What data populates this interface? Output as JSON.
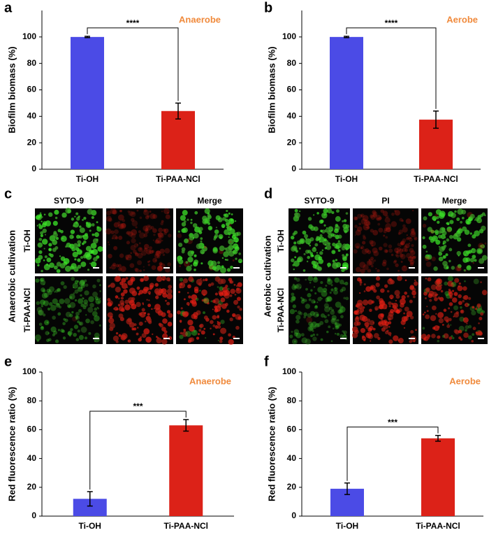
{
  "panel_letters": [
    "a",
    "b",
    "c",
    "d",
    "e",
    "f"
  ],
  "chart_data": [
    {
      "type": "bar",
      "y_label": "Biofilm biomass (%)",
      "significance": "****",
      "condition": "Anaerobe",
      "categories": [
        "Ti-OH",
        "Ti-PAA-NCl"
      ],
      "values": [
        100,
        44
      ],
      "errors": [
        0.5,
        6
      ],
      "colors": [
        "#4b4be6",
        "#dc2218"
      ],
      "ylim": [
        0,
        120
      ],
      "yticks": [
        0,
        20,
        40,
        60,
        80,
        100
      ]
    },
    {
      "type": "bar",
      "y_label": "Biofilm biomass (%)",
      "significance": "****",
      "condition": "Aerobe",
      "categories": [
        "Ti-OH",
        "Ti-PAA-NCl"
      ],
      "values": [
        100,
        37.5
      ],
      "errors": [
        0.5,
        6.5
      ],
      "colors": [
        "#4b4be6",
        "#dc2218"
      ],
      "ylim": [
        0,
        120
      ],
      "yticks": [
        0,
        20,
        40,
        60,
        80,
        100
      ]
    },
    {
      "type": "bar",
      "y_label": "Red fluorescence ratio (%)",
      "significance": "***",
      "condition": "Anaerobe",
      "categories": [
        "Ti-OH",
        "Ti-PAA-NCl"
      ],
      "values": [
        12,
        63
      ],
      "errors": [
        5,
        4
      ],
      "colors": [
        "#4b4be6",
        "#dc2218"
      ],
      "ylim": [
        0,
        100
      ],
      "yticks": [
        0,
        20,
        40,
        60,
        80,
        100
      ]
    },
    {
      "type": "bar",
      "y_label": "Red fluorescence ratio (%)",
      "significance": "***",
      "condition": "Aerobe",
      "categories": [
        "Ti-OH",
        "Ti-PAA-NCl"
      ],
      "values": [
        19,
        54
      ],
      "errors": [
        4,
        2
      ],
      "colors": [
        "#4b4be6",
        "#dc2218"
      ],
      "ylim": [
        0,
        100
      ],
      "yticks": [
        0,
        20,
        40,
        60,
        80,
        100
      ]
    }
  ],
  "image_panels": [
    {
      "columns": [
        "SYTO-9",
        "PI",
        "Merge"
      ],
      "rows": [
        "Ti-OH",
        "Ti-PAA-NCl"
      ],
      "side_label": "Anaerobic cultivation"
    },
    {
      "columns": [
        "SYTO-9",
        "PI",
        "Merge"
      ],
      "rows": [
        "Ti-OH",
        "Ti-PAA-NCl"
      ],
      "side_label": "Aerobic cultivation"
    }
  ]
}
